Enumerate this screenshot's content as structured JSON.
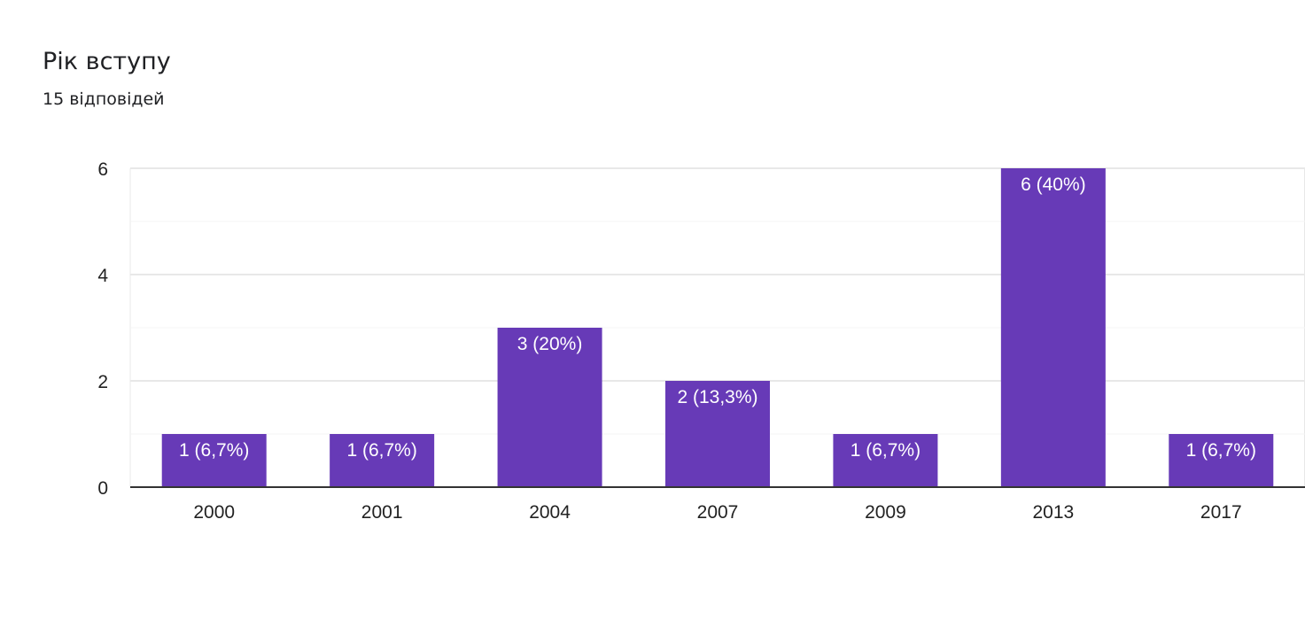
{
  "header": {
    "title": "Рік вступу",
    "responses": "15 відповідей"
  },
  "colors": {
    "bar": "#673ab7",
    "grid": "#e8e8e8",
    "minor_grid": "#f4f4f4",
    "axis": "#333333"
  },
  "chart_data": {
    "type": "bar",
    "categories": [
      "2000",
      "2001",
      "2004",
      "2007",
      "2009",
      "2013",
      "2017"
    ],
    "values": [
      1,
      1,
      3,
      2,
      1,
      6,
      1
    ],
    "data_labels": [
      "1 (6,7%)",
      "1 (6,7%)",
      "3 (20%)",
      "2 (13,3%)",
      "1 (6,7%)",
      "6 (40%)",
      "1 (6,7%)"
    ],
    "y_ticks": [
      0,
      2,
      4,
      6
    ],
    "ylim": [
      0,
      6
    ],
    "grid": true,
    "title": "",
    "xlabel": "",
    "ylabel": ""
  }
}
